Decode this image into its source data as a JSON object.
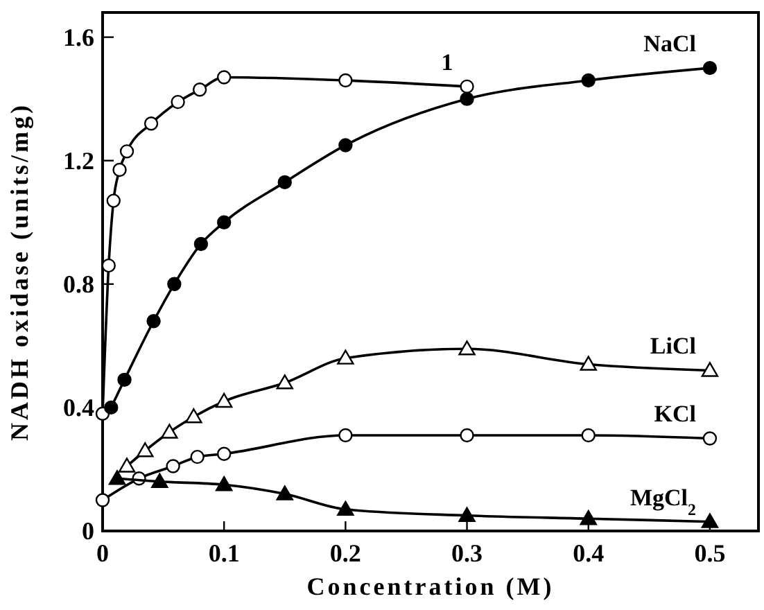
{
  "chart_data": {
    "type": "line",
    "xlabel": "Concentration (M)",
    "ylabel": "NADH oxidase (units/mg)",
    "xlim": [
      0,
      0.54
    ],
    "ylim": [
      0,
      1.68
    ],
    "xticks": [
      0,
      0.1,
      0.2,
      0.3,
      0.4,
      0.5
    ],
    "yticks": [
      0,
      0.4,
      0.8,
      1.2,
      1.6
    ],
    "line_style": "solid",
    "series": [
      {
        "name": "1",
        "color": "#ffffff",
        "marker": "circle",
        "x": [
          0,
          0.005,
          0.009,
          0.014,
          0.02,
          0.04,
          0.062,
          0.08,
          0.1,
          0.2,
          0.3
        ],
        "values": [
          0.38,
          0.86,
          1.07,
          1.17,
          1.23,
          1.32,
          1.39,
          1.43,
          1.47,
          1.46,
          1.44
        ]
      },
      {
        "name": "NaCl",
        "color": "#000000",
        "marker": "circle",
        "x": [
          0.007,
          0.018,
          0.042,
          0.059,
          0.081,
          0.1,
          0.15,
          0.2,
          0.3,
          0.4,
          0.5
        ],
        "values": [
          0.4,
          0.49,
          0.68,
          0.8,
          0.93,
          1.0,
          1.13,
          1.25,
          1.4,
          1.46,
          1.5
        ]
      },
      {
        "name": "LiCl",
        "color": "#ffffff",
        "marker": "triangle",
        "x": [
          0.02,
          0.035,
          0.055,
          0.075,
          0.1,
          0.15,
          0.2,
          0.3,
          0.4,
          0.5
        ],
        "values": [
          0.21,
          0.26,
          0.32,
          0.37,
          0.42,
          0.48,
          0.56,
          0.59,
          0.54,
          0.52
        ]
      },
      {
        "name": "KCl",
        "color": "#ffffff",
        "marker": "circle",
        "x": [
          0,
          0.03,
          0.058,
          0.078,
          0.1,
          0.2,
          0.3,
          0.4,
          0.5
        ],
        "values": [
          0.1,
          0.17,
          0.21,
          0.24,
          0.25,
          0.31,
          0.31,
          0.31,
          0.3
        ]
      },
      {
        "name": "MgCl$_{2}$",
        "color": "#000000",
        "marker": "triangle",
        "x": [
          0.012,
          0.047,
          0.1,
          0.15,
          0.2,
          0.3,
          0.4,
          0.5
        ],
        "values": [
          0.17,
          0.16,
          0.15,
          0.12,
          0.07,
          0.05,
          0.04,
          0.03
        ]
      }
    ]
  }
}
